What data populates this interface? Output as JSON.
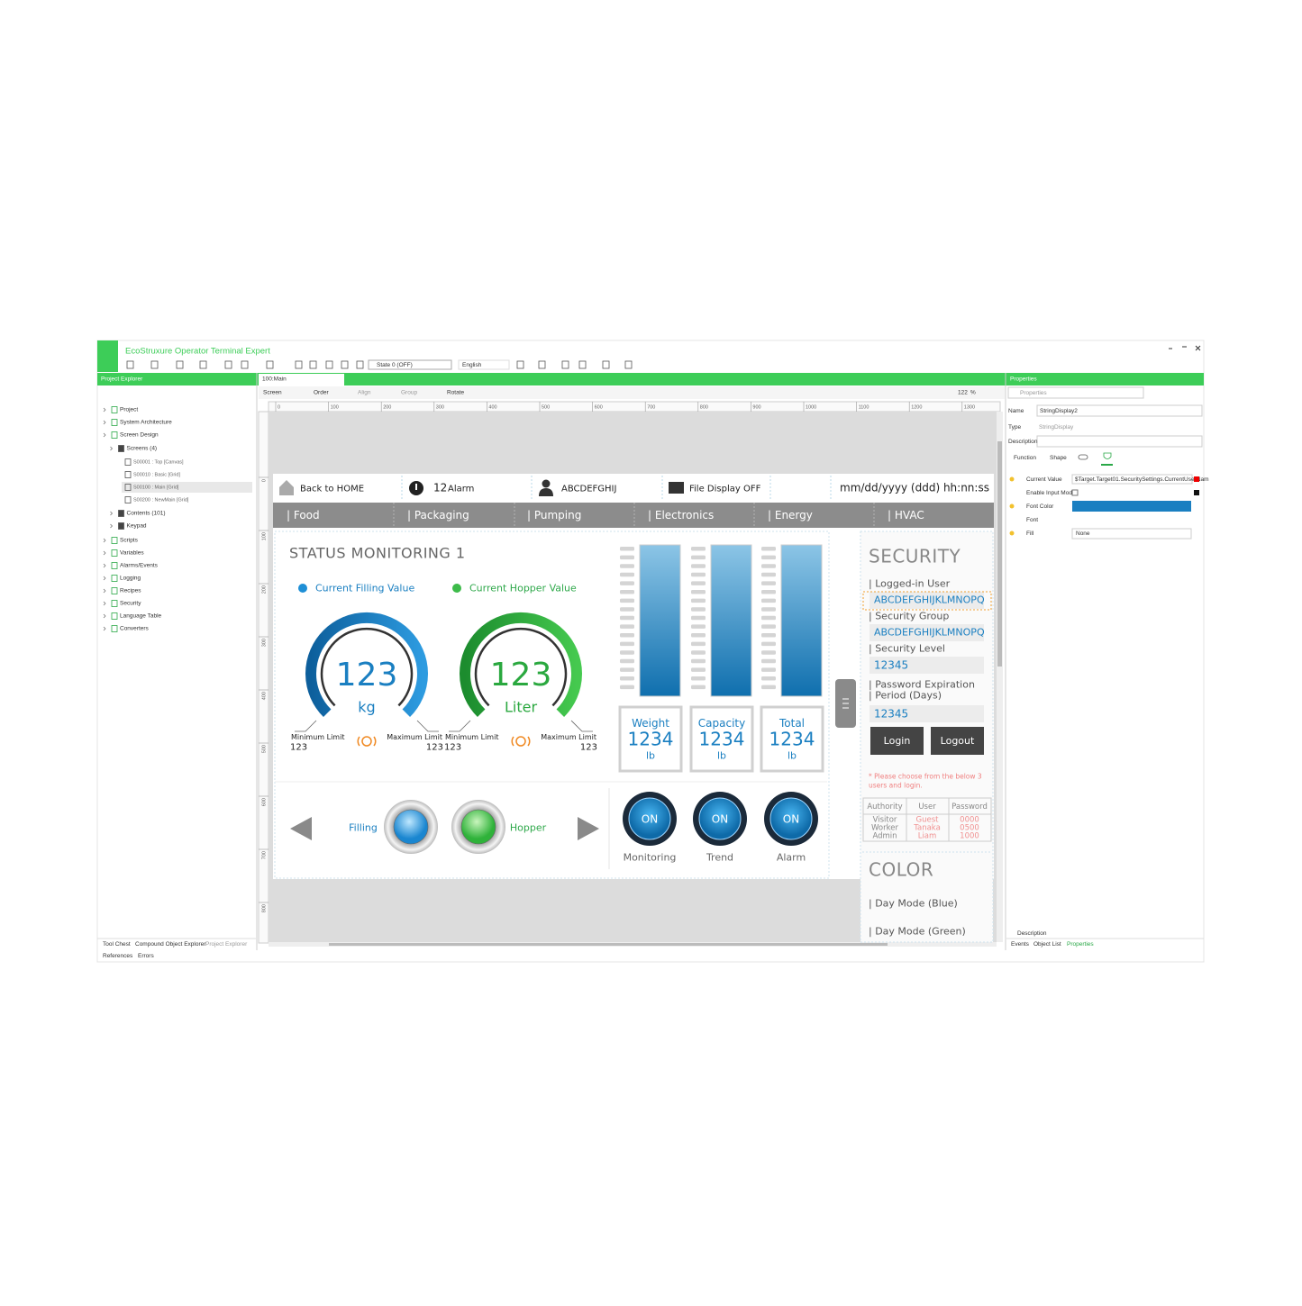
{
  "app": {
    "title": "EcoStruxure Operator Terminal Expert"
  },
  "toolbar": {
    "state": "State 0 (OFF)",
    "language": "English"
  },
  "project_explorer": {
    "title": "Project Explorer",
    "tree": [
      "Project",
      "System Architecture",
      "Screen Design",
      "Screens (4)",
      "S00001 : Top [Canvas]",
      "S00010 : Basic [Grid]",
      "S00100 : Main [Grid]",
      "S00200 : NewMain [Grid]",
      "Contents (101)",
      "Keypad",
      "Scripts",
      "Variables",
      "Alarms/Events",
      "Logging",
      "Recipes",
      "Security",
      "Language Table",
      "Converters"
    ],
    "tabs": [
      "Tool Chest",
      "Compound Object Explorer",
      "Project Explorer"
    ],
    "tabs2": [
      "References",
      "Errors"
    ]
  },
  "editor": {
    "tab": "100:Main",
    "tools": [
      "Screen",
      "Order",
      "Align",
      "Group",
      "Rotate"
    ],
    "zoom": 122,
    "zoom_unit": "%",
    "ruler_x": [
      0,
      100,
      200,
      300,
      400,
      500,
      600,
      700,
      800,
      900,
      1000,
      1100,
      1200,
      1300
    ],
    "ruler_y": [
      0,
      100,
      200,
      300,
      400,
      500,
      600,
      700,
      800
    ]
  },
  "hmi": {
    "header": {
      "home": "Back to HOME",
      "alarm_count": 12,
      "alarm": "Alarm",
      "user": "ABCDEFGHIJ",
      "file": "File Display OFF",
      "datetime": "mm/dd/yyyy (ddd) hh:nn:ss"
    },
    "nav": [
      "| Food",
      "| Packaging",
      "| Pumping",
      "| Electronics",
      "| Energy",
      "| HVAC"
    ],
    "status": {
      "title": "STATUS MONITORING 1",
      "legend": [
        "Current Filling Value",
        "Current Hopper Value"
      ],
      "gauges": [
        {
          "value": 123,
          "unit": "kg",
          "min_label": "Minimum Limit",
          "min": 123,
          "max_label": "Maximum Limit",
          "max": 123
        },
        {
          "value": 123,
          "unit": "Liter",
          "min_label": "Minimum Limit",
          "min": 123,
          "max_label": "Maximum Limit",
          "max": 123
        }
      ]
    },
    "tanks": [
      {
        "label": "Weight",
        "value": 1234,
        "unit": "lb"
      },
      {
        "label": "Capacity",
        "value": 1234,
        "unit": "lb"
      },
      {
        "label": "Total",
        "value": 1234,
        "unit": "lb"
      }
    ],
    "buttons": {
      "left": "Filling",
      "right": "Hopper",
      "toggles": [
        {
          "state": "ON",
          "label": "Monitoring"
        },
        {
          "state": "ON",
          "label": "Trend"
        },
        {
          "state": "ON",
          "label": "Alarm"
        }
      ]
    },
    "security": {
      "title": "SECURITY",
      "logged_label": "| Logged-in User",
      "logged_value": "ABCDEFGHIJKLMNOPQ",
      "group_label": "| Security Group",
      "group_value": "ABCDEFGHIJKLMNOPQ",
      "level_label": "| Security Level",
      "level_value": 12345,
      "expiry_label": [
        "| Password Expiration",
        "| Period (Days)"
      ],
      "expiry_value": 12345,
      "login": "Login",
      "logout": "Logout",
      "note": [
        "* Please choose from the below 3",
        "users and login."
      ],
      "table": {
        "header": [
          "Authority",
          "User",
          "Password"
        ],
        "rows": [
          [
            "Visitor",
            "Guest",
            "0000"
          ],
          [
            "Worker",
            "Tanaka",
            "0500"
          ],
          [
            "Admin",
            "Liam",
            "1000"
          ]
        ]
      }
    },
    "color": {
      "title": "COLOR",
      "items": [
        "| Day Mode (Blue)",
        "| Day Mode (Green)"
      ]
    }
  },
  "properties": {
    "title": "Properties",
    "search": "Properties",
    "name_label": "Name",
    "name": "StringDisplay2",
    "type_label": "Type",
    "type": "StringDisplay",
    "description_label": "Description",
    "tabs": [
      "Function",
      "Shape"
    ],
    "rows": [
      {
        "label": "Current Value",
        "value": "$Target.Target01.SecuritySettings.CurrentUserNam"
      },
      {
        "label": "Enable Input Mode"
      },
      {
        "label": "Font Color"
      },
      {
        "label": "Font"
      },
      {
        "label": "Fill",
        "value": "None"
      }
    ],
    "footer": "Description",
    "bottom_tabs": [
      "Events",
      "Object List",
      "Properties"
    ]
  }
}
